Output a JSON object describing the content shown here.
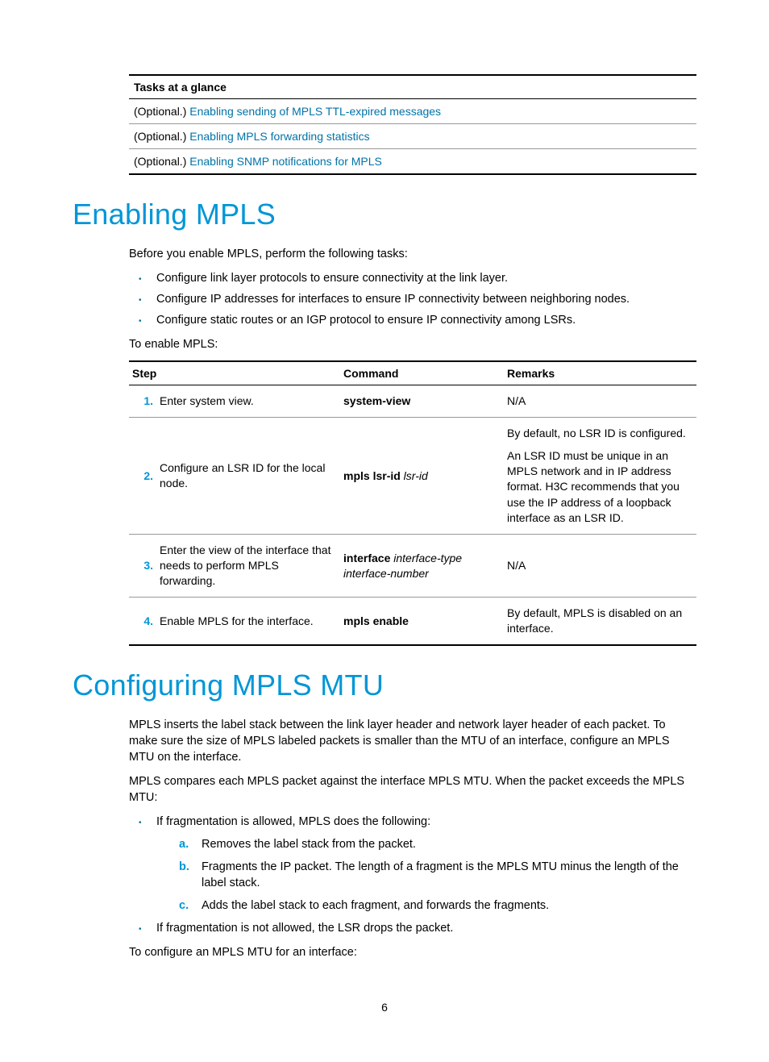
{
  "tasks_table": {
    "header": "Tasks at a glance",
    "rows": [
      {
        "prefix": "(Optional.) ",
        "link": "Enabling sending of MPLS TTL-expired messages"
      },
      {
        "prefix": "(Optional.) ",
        "link": "Enabling MPLS forwarding statistics"
      },
      {
        "prefix": "(Optional.) ",
        "link": "Enabling SNMP notifications for MPLS"
      }
    ]
  },
  "section1": {
    "heading": "Enabling MPLS",
    "intro": "Before you enable MPLS, perform the following tasks:",
    "bullets": [
      "Configure link layer protocols to ensure connectivity at the link layer.",
      "Configure IP addresses for interfaces to ensure IP connectivity between neighboring nodes.",
      "Configure static routes or an IGP protocol to ensure IP connectivity among LSRs."
    ],
    "lead": "To enable MPLS:",
    "table": {
      "headers": {
        "step": "Step",
        "cmd": "Command",
        "rem": "Remarks"
      },
      "rows": [
        {
          "num": "1.",
          "step": "Enter system view.",
          "cmd_bold": "system-view",
          "cmd_ital": "",
          "remarks": [
            "N/A"
          ]
        },
        {
          "num": "2.",
          "step": "Configure an LSR ID for the local node.",
          "cmd_bold": "mpls lsr-id",
          "cmd_ital": " lsr-id",
          "remarks": [
            "By default, no LSR ID is configured.",
            "An LSR ID must be unique in an MPLS network and in IP address format. H3C recommends that you use the IP address of a loopback interface as an LSR ID."
          ]
        },
        {
          "num": "3.",
          "step": "Enter the view of the interface that needs to perform MPLS forwarding.",
          "cmd_bold": "interface",
          "cmd_ital": " interface-type interface-number",
          "remarks": [
            "N/A"
          ]
        },
        {
          "num": "4.",
          "step": "Enable MPLS for the interface.",
          "cmd_bold": "mpls enable",
          "cmd_ital": "",
          "remarks": [
            "By default, MPLS is disabled on an interface."
          ]
        }
      ]
    }
  },
  "section2": {
    "heading": "Configuring MPLS MTU",
    "p1": "MPLS inserts the label stack between the link layer header and network layer header of each packet. To make sure the size of MPLS labeled packets is smaller than the MTU of an interface, configure an MPLS MTU on the interface.",
    "p2": "MPLS compares each MPLS packet against the interface MPLS MTU. When the packet exceeds the MPLS MTU:",
    "bullet1": "If fragmentation is allowed, MPLS does the following:",
    "letters": [
      {
        "l": "a.",
        "t": "Removes the label stack from the packet."
      },
      {
        "l": "b.",
        "t": "Fragments the IP packet. The length of a fragment is the MPLS MTU minus the length of the label stack."
      },
      {
        "l": "c.",
        "t": "Adds the label stack to each fragment, and forwards the fragments."
      }
    ],
    "bullet2": "If fragmentation is not allowed, the LSR drops the packet.",
    "lead": "To configure an MPLS MTU for an interface:"
  },
  "page_number": "6"
}
